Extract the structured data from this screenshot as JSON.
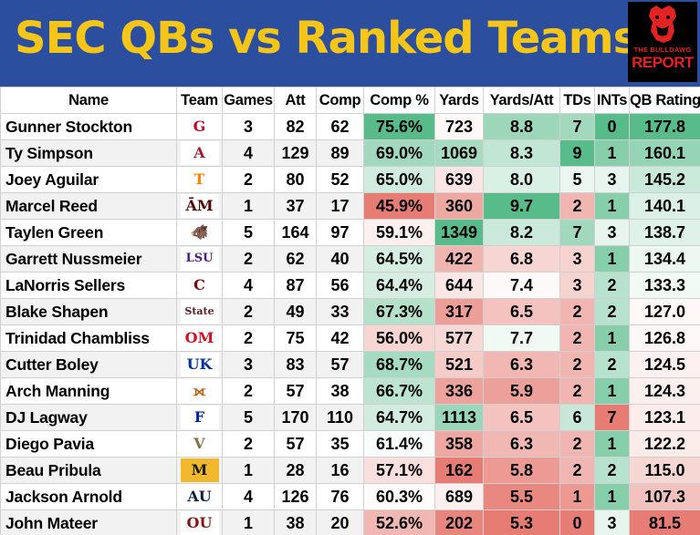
{
  "title": "SEC QBs vs Ranked Teams",
  "logo": {
    "line1": "THE BULLDAWG",
    "line2": "REPORT"
  },
  "colors": {
    "header_bg": "#2b4f9e",
    "title": "#f5c518",
    "logo_text": "#e32222",
    "good": "#57bb8a",
    "bad": "#e67c73",
    "neutral": "#ffffff"
  },
  "chart_data": {
    "type": "table",
    "columns": [
      "Name",
      "Team",
      "Games",
      "Att",
      "Comp",
      "Comp %",
      "Yards",
      "Yards/Att",
      "TDs",
      "INTs",
      "QB Rating"
    ],
    "rows": [
      {
        "name": "Gunner Stockton",
        "team_icon": "georgia-g-icon",
        "games": 3,
        "att": 82,
        "comp": 62,
        "comp_pct": "75.6%",
        "yards": 723,
        "ypa": "8.8",
        "tds": 7,
        "ints": 0,
        "rating": "177.8"
      },
      {
        "name": "Ty Simpson",
        "team_icon": "alabama-a-icon",
        "games": 4,
        "att": 129,
        "comp": 89,
        "comp_pct": "69.0%",
        "yards": 1069,
        "ypa": "8.3",
        "tds": 9,
        "ints": 1,
        "rating": "160.1"
      },
      {
        "name": "Joey Aguilar",
        "team_icon": "tennessee-t-icon",
        "games": 2,
        "att": 80,
        "comp": 52,
        "comp_pct": "65.0%",
        "yards": 639,
        "ypa": "8.0",
        "tds": 5,
        "ints": 3,
        "rating": "145.2"
      },
      {
        "name": "Marcel Reed",
        "team_icon": "texas-am-icon",
        "games": 1,
        "att": 37,
        "comp": 17,
        "comp_pct": "45.9%",
        "yards": 360,
        "ypa": "9.7",
        "tds": 2,
        "ints": 1,
        "rating": "140.1"
      },
      {
        "name": "Taylen Green",
        "team_icon": "arkansas-hog-icon",
        "games": 5,
        "att": 164,
        "comp": 97,
        "comp_pct": "59.1%",
        "yards": 1349,
        "ypa": "8.2",
        "tds": 7,
        "ints": 3,
        "rating": "138.7"
      },
      {
        "name": "Garrett Nussmeier",
        "team_icon": "lsu-icon",
        "games": 2,
        "att": 62,
        "comp": 40,
        "comp_pct": "64.5%",
        "yards": 422,
        "ypa": "6.8",
        "tds": 3,
        "ints": 1,
        "rating": "134.4"
      },
      {
        "name": "LaNorris Sellers",
        "team_icon": "south-carolina-c-icon",
        "games": 4,
        "att": 87,
        "comp": 56,
        "comp_pct": "64.4%",
        "yards": 644,
        "ypa": "7.4",
        "tds": 3,
        "ints": 2,
        "rating": "133.3"
      },
      {
        "name": "Blake Shapen",
        "team_icon": "mississippi-state-icon",
        "games": 2,
        "att": 49,
        "comp": 33,
        "comp_pct": "67.3%",
        "yards": 317,
        "ypa": "6.5",
        "tds": 2,
        "ints": 2,
        "rating": "127.0"
      },
      {
        "name": "Trinidad Chambliss",
        "team_icon": "ole-miss-icon",
        "games": 2,
        "att": 75,
        "comp": 42,
        "comp_pct": "56.0%",
        "yards": 577,
        "ypa": "7.7",
        "tds": 2,
        "ints": 1,
        "rating": "126.8"
      },
      {
        "name": "Cutter Boley",
        "team_icon": "kentucky-uk-icon",
        "games": 3,
        "att": 83,
        "comp": 57,
        "comp_pct": "68.7%",
        "yards": 521,
        "ypa": "6.3",
        "tds": 2,
        "ints": 2,
        "rating": "124.5"
      },
      {
        "name": "Arch Manning",
        "team_icon": "texas-longhorn-icon",
        "games": 2,
        "att": 57,
        "comp": 38,
        "comp_pct": "66.7%",
        "yards": 336,
        "ypa": "5.9",
        "tds": 2,
        "ints": 1,
        "rating": "124.3"
      },
      {
        "name": "DJ Lagway",
        "team_icon": "florida-gator-icon",
        "games": 5,
        "att": 170,
        "comp": 110,
        "comp_pct": "64.7%",
        "yards": 1113,
        "ypa": "6.5",
        "tds": 6,
        "ints": 7,
        "rating": "123.1"
      },
      {
        "name": "Diego Pavia",
        "team_icon": "vanderbilt-v-icon",
        "games": 2,
        "att": 57,
        "comp": 35,
        "comp_pct": "61.4%",
        "yards": 358,
        "ypa": "6.3",
        "tds": 2,
        "ints": 1,
        "rating": "122.2"
      },
      {
        "name": "Beau Pribula",
        "team_icon": "missouri-tiger-icon",
        "games": 1,
        "att": 28,
        "comp": 16,
        "comp_pct": "57.1%",
        "yards": 162,
        "ypa": "5.8",
        "tds": 2,
        "ints": 2,
        "rating": "115.0"
      },
      {
        "name": "Jackson Arnold",
        "team_icon": "auburn-au-icon",
        "games": 4,
        "att": 126,
        "comp": 76,
        "comp_pct": "60.3%",
        "yards": 689,
        "ypa": "5.5",
        "tds": 1,
        "ints": 1,
        "rating": "107.3"
      },
      {
        "name": "John Mateer",
        "team_icon": "oklahoma-ou-icon",
        "games": 1,
        "att": 38,
        "comp": 20,
        "comp_pct": "52.6%",
        "yards": 202,
        "ypa": "5.3",
        "tds": 0,
        "ints": 3,
        "rating": "81.5"
      }
    ]
  }
}
